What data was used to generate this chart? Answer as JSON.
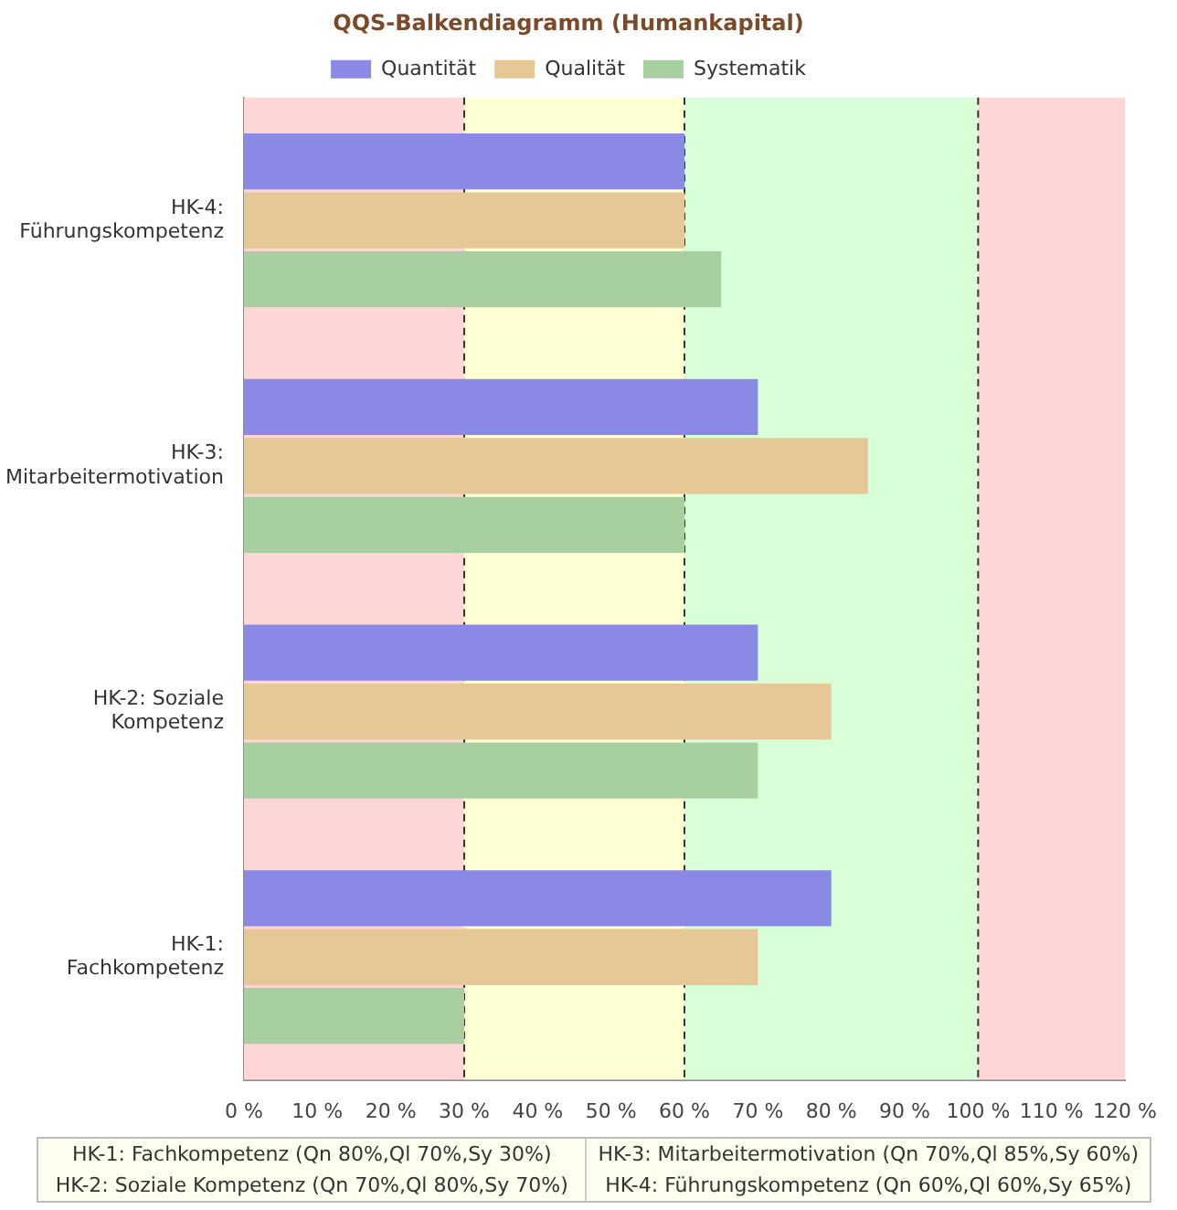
{
  "chart_data": {
    "type": "bar",
    "orientation": "horizontal",
    "title": "QQS-Balkendiagramm (Humankapital)",
    "categories": [
      "HK-4: Führungskompetenz",
      "HK-3: Mitarbeitermotivation",
      "HK-2: Soziale Kompetenz",
      "HK-1: Fachkompetenz"
    ],
    "series": [
      {
        "name": "Quantität",
        "color": "#8a8ae6",
        "values": [
          60,
          70,
          70,
          80
        ]
      },
      {
        "name": "Qualität",
        "color": "#e6c896",
        "values": [
          60,
          85,
          80,
          70
        ]
      },
      {
        "name": "Systematik",
        "color": "#a8cfa0",
        "values": [
          65,
          60,
          70,
          30
        ]
      }
    ],
    "xlim": [
      0,
      120
    ],
    "xticks": [
      {
        "value": 0,
        "label": "0 %"
      },
      {
        "value": 10,
        "label": "10 %"
      },
      {
        "value": 20,
        "label": "20 %"
      },
      {
        "value": 30,
        "label": "30 %"
      },
      {
        "value": 40,
        "label": "40 %"
      },
      {
        "value": 50,
        "label": "50 %"
      },
      {
        "value": 60,
        "label": "60 %"
      },
      {
        "value": 70,
        "label": "70 %"
      },
      {
        "value": 80,
        "label": "80 %"
      },
      {
        "value": 90,
        "label": "90 %"
      },
      {
        "value": 100,
        "label": "100 %"
      },
      {
        "value": 110,
        "label": "110 %"
      },
      {
        "value": 120,
        "label": "120 %"
      }
    ],
    "bands": [
      {
        "axis": "x",
        "from": 0,
        "to": 30,
        "color": "#ffd6d6"
      },
      {
        "axis": "x",
        "from": 30,
        "to": 60,
        "color": "#ffffd4"
      },
      {
        "axis": "x",
        "from": 60,
        "to": 100,
        "color": "#d8ffd8"
      },
      {
        "axis": "x",
        "from": 100,
        "to": 120,
        "color": "#ffd6d6"
      }
    ],
    "ref_lines": [
      {
        "axis": "x",
        "value": 30,
        "color": "#333333",
        "line_style": "dashed"
      },
      {
        "axis": "x",
        "value": 60,
        "color": "#333333",
        "line_style": "dashed"
      },
      {
        "axis": "x",
        "value": 100,
        "color": "#333333",
        "line_style": "dashed"
      }
    ],
    "legend": "top",
    "grid": false,
    "annotations": [
      "HK-1: Fachkompetenz (Qn 80%,Ql 70%,Sy 30%)",
      "HK-3: Mitarbeitermotivation (Qn 70%,Ql 85%,Sy 60%)",
      "HK-2: Soziale Kompetenz (Qn 70%,Ql 80%,Sy 70%)",
      "HK-4: Führungskompetenz (Qn 60%,Ql 60%,Sy 65%)"
    ]
  }
}
